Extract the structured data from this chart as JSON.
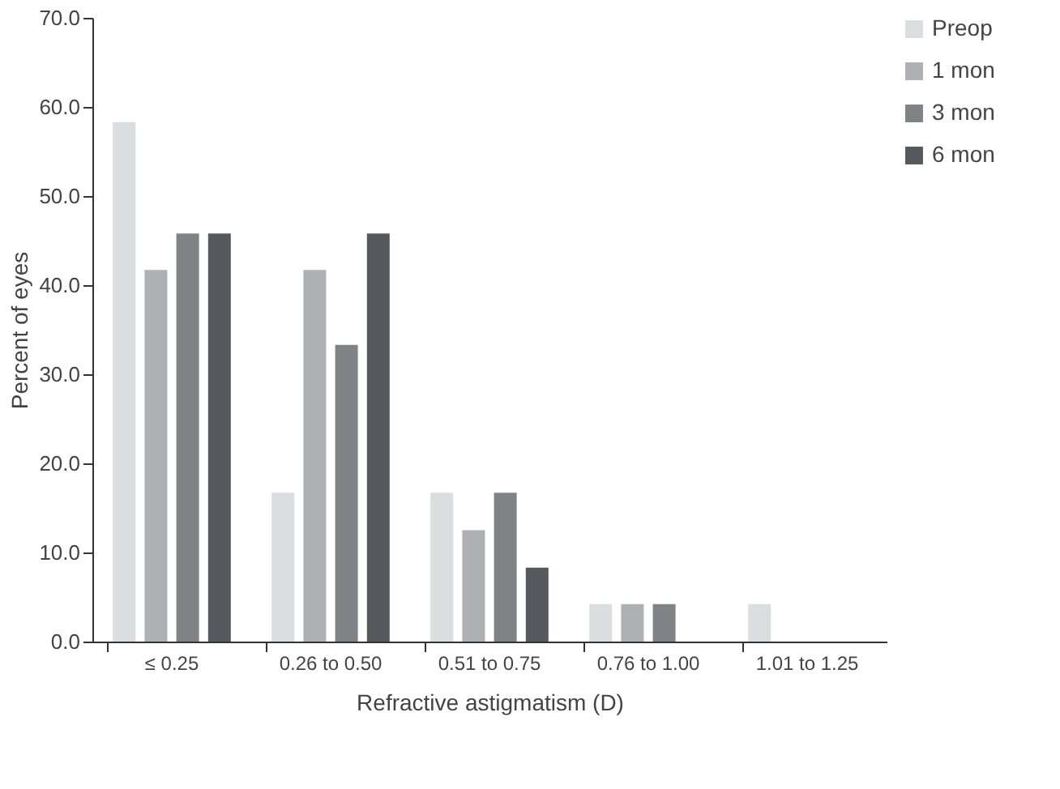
{
  "chart_data": {
    "type": "bar",
    "xlabel": "Refractive astigmatism (D)",
    "ylabel": "Percent of eyes",
    "categories": [
      "≤ 0.25",
      "0.26 to 0.50",
      "0.51 to 0.75",
      "0.76 to 1.00",
      "1.01 to 1.25"
    ],
    "series": [
      {
        "name": "Preop",
        "color": "#dcdddf",
        "values": [
          58.3,
          16.7,
          16.7,
          4.2,
          4.2
        ]
      },
      {
        "name": "1 mon",
        "color": "#afb0b2",
        "values": [
          41.7,
          41.7,
          12.5,
          4.2,
          0
        ]
      },
      {
        "name": "3 mon",
        "color": "#818285",
        "values": [
          45.8,
          33.3,
          16.7,
          4.2,
          0
        ]
      },
      {
        "name": "6 mon",
        "color": "#57585d",
        "values": [
          45.8,
          45.8,
          8.3,
          0,
          0
        ]
      }
    ],
    "ylim": [
      0,
      70
    ],
    "yticks": [
      {
        "value": 0,
        "label": "0.0"
      },
      {
        "value": 10,
        "label": "10.0"
      },
      {
        "value": 20,
        "label": "20.0"
      },
      {
        "value": 30,
        "label": "30.0"
      },
      {
        "value": 40,
        "label": "40.0"
      },
      {
        "value": 50,
        "label": "50.0"
      },
      {
        "value": 60,
        "label": "60.0"
      },
      {
        "value": 70,
        "label": "70.0"
      }
    ],
    "grid": false,
    "legend": "right"
  }
}
